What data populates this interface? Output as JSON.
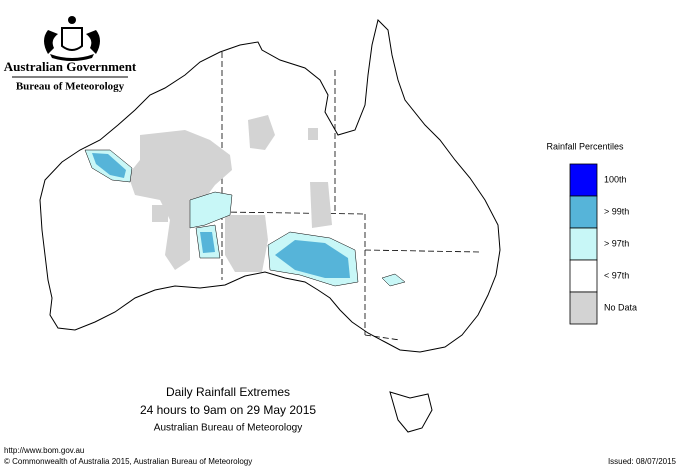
{
  "header": {
    "government": "Australian Government",
    "bureau": "Bureau of Meteorology"
  },
  "legend": {
    "title": "Rainfall Percentiles",
    "items": [
      {
        "label": "100th",
        "color": "#0000ff"
      },
      {
        "label": "> 99th",
        "color": "#56b4d9"
      },
      {
        "label": "> 97th",
        "color": "#c8f7f7"
      },
      {
        "label": "< 97th",
        "color": "#ffffff"
      },
      {
        "label": "No Data",
        "color": "#d3d3d3"
      }
    ]
  },
  "caption": {
    "title": "Daily Rainfall Extremes",
    "period": "24 hours to 9am on 29 May 2015",
    "source": "Australian Bureau of Meteorology"
  },
  "footer": {
    "url": "http://www.bom.gov.au",
    "copyright": "© Commonwealth of Australia 2015, Australian Bureau of Meteorology",
    "issued": "Issued: 08/07/2015"
  }
}
